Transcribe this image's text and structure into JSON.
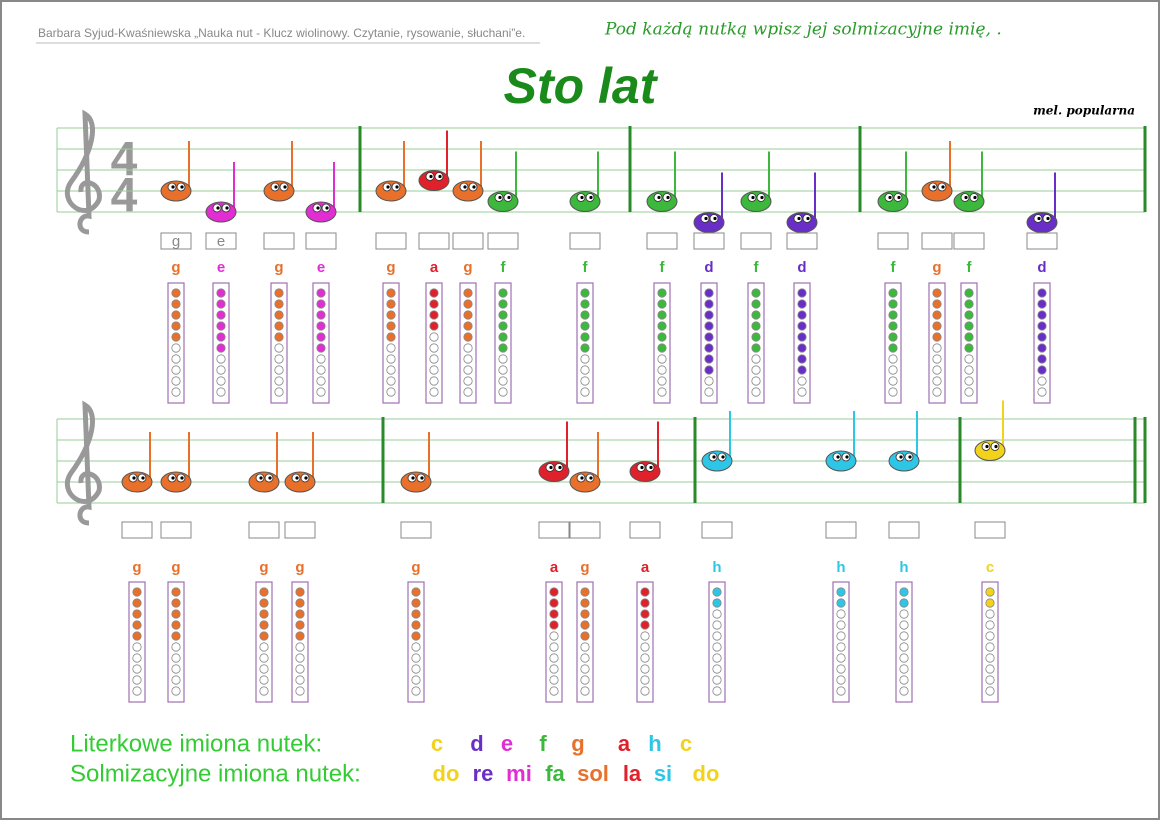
{
  "header": {
    "source": "Barbara Syjud-Kwaśniewska „Nauka nut - Klucz wiolinowy. Czytanie, rysowanie, słuchani”e.",
    "instruction": "Pod każdą nutką wpisz jej solmizacyjne imię, .",
    "title": "Sto lat",
    "melody": "mel. popularna"
  },
  "time_signature": {
    "top": "4",
    "bottom": "4"
  },
  "rows": [
    {
      "notes": [
        "g",
        "e",
        "g",
        "e",
        "g",
        "a",
        "g",
        "f",
        "f",
        "f",
        "d",
        "f",
        "d",
        "f",
        "g",
        "f",
        "d"
      ],
      "answers": [
        "g",
        "e"
      ]
    },
    {
      "notes": [
        "g",
        "g",
        "g",
        "g",
        "g",
        "a",
        "g",
        "a",
        "h",
        "h",
        "h",
        "c"
      ]
    }
  ],
  "legend": {
    "letters_label": "Literkowe imiona nutek:",
    "letters": [
      "c",
      "d",
      "e",
      "f",
      "g",
      "a",
      "h",
      "c"
    ],
    "solmization_label": "Solmizacyjne imiona nutek:",
    "solmization": [
      "do",
      "re",
      "mi",
      "fa",
      "sol",
      "la",
      "si",
      "do"
    ]
  },
  "note_colors": {
    "c": "#f2d21a",
    "d": "#6a2ec8",
    "e": "#e02ed2",
    "f": "#3cb83c",
    "g": "#e8702a",
    "a": "#e0202a",
    "h": "#2ec6e6"
  }
}
